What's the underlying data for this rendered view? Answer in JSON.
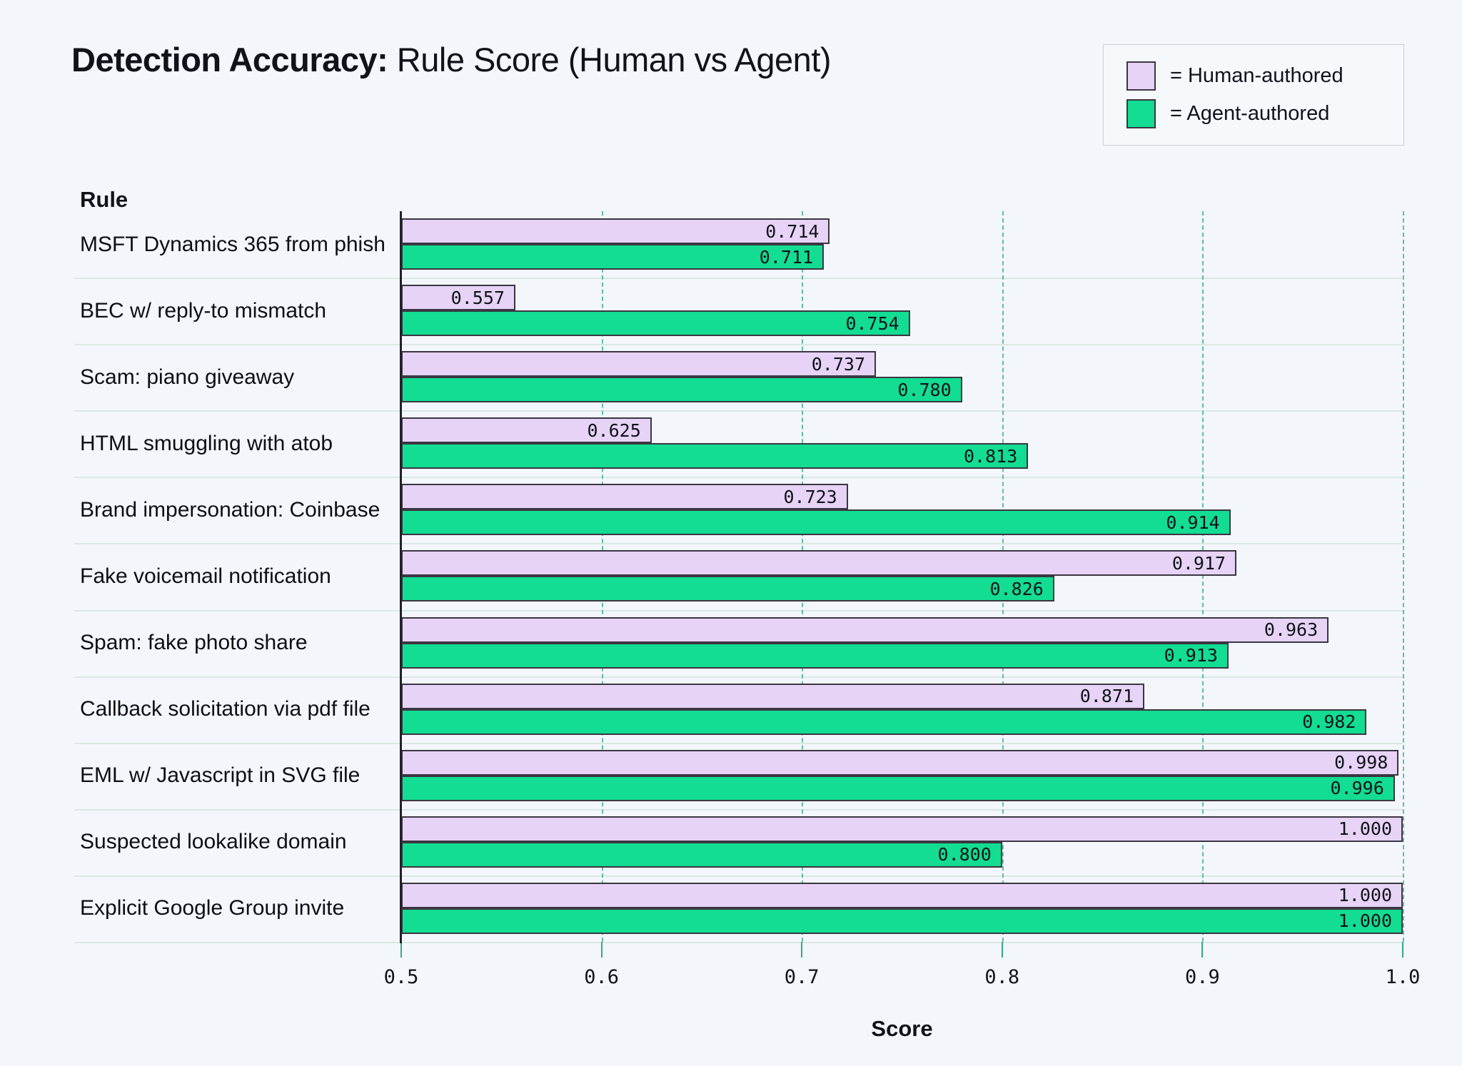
{
  "title": {
    "bold": "Detection Accuracy:",
    "rest": " Rule Score (Human vs Agent)"
  },
  "legend": {
    "items": [
      {
        "key": "human",
        "label": "= Human-authored"
      },
      {
        "key": "agent",
        "label": "= Agent-authored"
      }
    ]
  },
  "colors": {
    "background": "#f3f6fa",
    "human": "#e7d3f6",
    "agent": "#12dd92",
    "grid": "#35a78e",
    "bar_border": "#3b3642"
  },
  "chart_data": {
    "type": "bar",
    "orientation": "horizontal",
    "title": "Detection Accuracy: Rule Score (Human vs Agent)",
    "category_header": "Rule",
    "xlabel": "Score",
    "xlim": [
      0.5,
      1.0
    ],
    "xticks": [
      0.5,
      0.6,
      0.7,
      0.8,
      0.9,
      1.0
    ],
    "grid": "dashed-vertical",
    "legend_position": "top-right",
    "value_decimals": 3,
    "categories": [
      "MSFT Dynamics 365 from phish",
      "BEC w/ reply-to mismatch",
      "Scam: piano giveaway",
      "HTML smuggling with atob",
      "Brand impersonation: Coinbase",
      "Fake voicemail notification",
      "Spam: fake photo share",
      "Callback solicitation via pdf file",
      "EML w/ Javascript in SVG file",
      "Suspected lookalike domain",
      "Explicit Google Group invite"
    ],
    "series": [
      {
        "name": "Human-authored",
        "values": [
          0.714,
          0.557,
          0.737,
          0.625,
          0.723,
          0.917,
          0.963,
          0.871,
          0.998,
          1.0,
          1.0
        ]
      },
      {
        "name": "Agent-authored",
        "values": [
          0.711,
          0.754,
          0.78,
          0.813,
          0.914,
          0.826,
          0.913,
          0.982,
          0.996,
          0.8,
          1.0
        ]
      }
    ]
  }
}
